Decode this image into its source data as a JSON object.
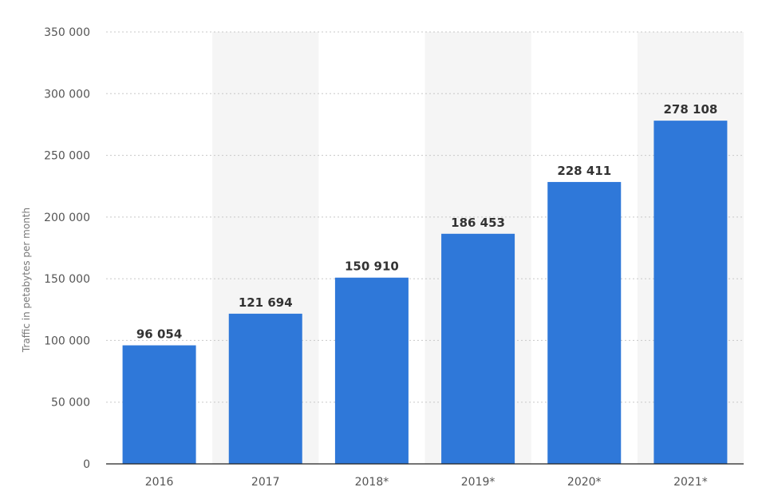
{
  "chart_data": {
    "type": "bar",
    "title": "",
    "xlabel": "",
    "ylabel": "Traffic in petabytes per month",
    "categories": [
      "2016",
      "2017",
      "2018*",
      "2019*",
      "2020*",
      "2021*"
    ],
    "values": [
      96054,
      121694,
      150910,
      186453,
      228411,
      278108
    ],
    "value_labels": [
      "96 054",
      "121 694",
      "150 910",
      "186 453",
      "228 411",
      "278 108"
    ],
    "ylim": [
      0,
      350000
    ],
    "yticks": [
      0,
      50000,
      100000,
      150000,
      200000,
      250000,
      300000,
      350000
    ],
    "ytick_labels": [
      "0",
      "50 000",
      "100 000",
      "150 000",
      "200 000",
      "250 000",
      "300 000",
      "350 000"
    ],
    "grid": true,
    "legend": "none",
    "colors": {
      "bar": "#2f78d9",
      "alternate_band": "#f5f5f5"
    }
  }
}
